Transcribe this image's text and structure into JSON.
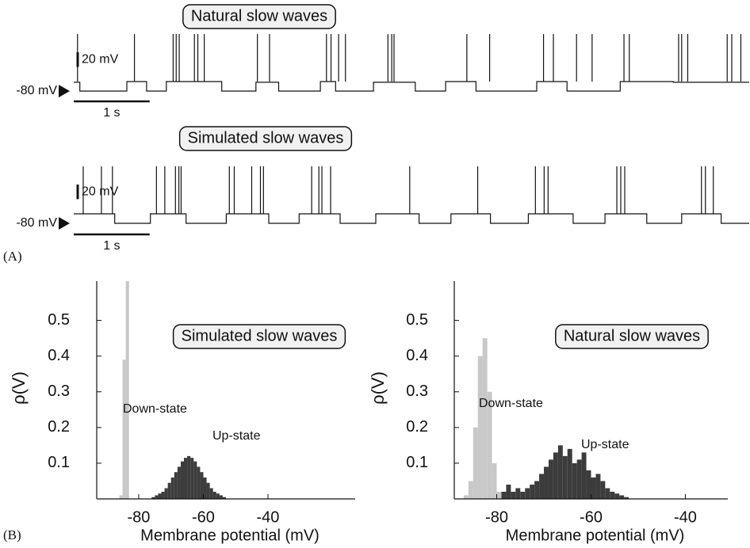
{
  "panel_labels": [
    "(A)",
    "(B)"
  ],
  "chart_data": [
    {
      "type": "trace",
      "title": "Natural slow waves",
      "scale_y": 20,
      "scale_y_label": "20 mV",
      "scale_x": 1,
      "scale_x_label": "1 s",
      "baseline": -80,
      "baseline_label": "-80 mV",
      "xlim": [
        0,
        8.9
      ],
      "ylim": [
        -85,
        0
      ],
      "x": [
        0,
        0.08,
        0.08,
        0.7,
        0.7,
        0.96,
        0.96,
        1.22,
        1.22,
        1.95,
        1.95,
        2.4,
        2.4,
        2.7,
        2.7,
        3.25,
        3.25,
        3.45,
        3.45,
        3.95,
        3.95,
        4.5,
        4.5,
        4.9,
        4.9,
        5.3,
        5.3,
        6.1,
        6.1,
        6.5,
        6.5,
        7.2,
        7.2,
        7.9,
        7.9,
        8.9
      ],
      "values": [
        -68,
        -68,
        -80,
        -80,
        -67,
        -67,
        -80,
        -80,
        -67,
        -67,
        -80,
        -80,
        -68,
        -68,
        -80,
        -80,
        -67,
        -67,
        -80,
        -80,
        -68,
        -68,
        -80,
        -80,
        -67,
        -67,
        -80,
        -80,
        -67,
        -67,
        -80,
        -80,
        -67,
        -67,
        -68,
        -68
      ],
      "spikes": [
        0.05,
        0.8,
        1.31,
        1.35,
        1.39,
        1.59,
        1.635,
        1.72,
        2.42,
        2.58,
        3.33,
        3.39,
        3.49,
        3.58,
        4.14,
        4.19,
        4.22,
        5.18,
        5.48,
        6.19,
        6.32,
        6.625,
        6.83,
        7.25,
        7.32,
        7.97,
        8.01,
        8.09,
        8.61,
        8.67,
        8.79
      ],
      "spike_peak": -2
    },
    {
      "type": "trace",
      "title": "Simulated slow waves",
      "scale_y": 20,
      "scale_y_label": "20 mV",
      "scale_x": 1,
      "scale_x_label": "1 s",
      "baseline": -80,
      "baseline_label": "-80 mV",
      "xlim": [
        0,
        8.9
      ],
      "ylim": [
        -85,
        0
      ],
      "x": [
        0,
        0.54,
        0.54,
        1.01,
        1.01,
        1.48,
        1.48,
        2.01,
        2.01,
        2.57,
        2.57,
        2.97,
        2.97,
        3.51,
        3.51,
        3.98,
        3.98,
        4.55,
        4.55,
        4.97,
        4.97,
        5.49,
        5.49,
        5.99,
        5.99,
        6.58,
        6.58,
        7.0,
        7.0,
        7.55,
        7.55,
        8.01,
        8.01,
        8.53,
        8.53,
        8.9
      ],
      "values": [
        -67,
        -67,
        -80,
        -80,
        -67,
        -67,
        -80,
        -80,
        -67,
        -67,
        -80,
        -80,
        -67,
        -67,
        -80,
        -80,
        -67,
        -67,
        -80,
        -80,
        -67,
        -67,
        -80,
        -80,
        -67,
        -67,
        -80,
        -80,
        -67,
        -67,
        -80,
        -80,
        -67,
        -67,
        -80,
        -80
      ],
      "spikes": [
        0.125,
        0.365,
        0.51,
        1.09,
        1.2,
        1.34,
        1.385,
        1.415,
        2.05,
        2.115,
        2.345,
        2.46,
        2.5,
        3.135,
        3.23,
        3.27,
        3.385,
        4.427,
        5.323,
        6.083,
        6.198,
        6.25,
        7.156,
        7.208,
        7.26,
        8.271,
        8.323,
        8.427
      ],
      "spike_peak": -2
    },
    {
      "type": "histogram",
      "title": "Simulated slow waves",
      "xlabel": "Membrane potential (mV)",
      "ylabel": "ρ(V)",
      "xlim": [
        -93,
        -13
      ],
      "ylim": [
        0,
        0.61
      ],
      "xticks": [
        -80,
        -60,
        -40
      ],
      "yticks": [
        0.1,
        0.2,
        0.3,
        0.4,
        0.5
      ],
      "series": [
        {
          "name": "Down-state",
          "color": "#c8c8c8",
          "bins": [
            -86,
            -85,
            -84,
            -83
          ],
          "values": [
            0.01,
            0.39,
            0.61
          ]
        },
        {
          "name": "Up-state",
          "color": "#3c3c3c",
          "bins": [
            -76,
            -75,
            -74,
            -73,
            -72,
            -71,
            -70,
            -69,
            -68,
            -67,
            -66,
            -65,
            -64,
            -63,
            -62,
            -61,
            -60,
            -59,
            -58,
            -57,
            -56,
            -55,
            -54,
            -53
          ],
          "values": [
            0.005,
            0.01,
            0.015,
            0.02,
            0.03,
            0.045,
            0.06,
            0.075,
            0.09,
            0.105,
            0.115,
            0.12,
            0.115,
            0.105,
            0.09,
            0.075,
            0.06,
            0.045,
            0.03,
            0.02,
            0.015,
            0.01,
            0.005
          ]
        }
      ]
    },
    {
      "type": "histogram",
      "title": "Natural slow waves",
      "xlabel": "Membrane potential (mV)",
      "ylabel": "ρ(V)",
      "xlim": [
        -89,
        -31
      ],
      "ylim": [
        0,
        0.61
      ],
      "xticks": [
        -80,
        -60,
        -40
      ],
      "yticks": [
        0.1,
        0.2,
        0.3,
        0.4,
        0.5
      ],
      "series": [
        {
          "name": "Down-state",
          "color": "#c8c8c8",
          "bins": [
            -87,
            -86,
            -85,
            -84,
            -83,
            -82,
            -81,
            -80,
            -79
          ],
          "values": [
            0.01,
            0.05,
            0.2,
            0.4,
            0.45,
            0.3,
            0.1,
            0.02
          ]
        },
        {
          "name": "Up-state",
          "color": "#3c3c3c",
          "bins": [
            -79,
            -78,
            -77,
            -76,
            -75,
            -74,
            -73,
            -72,
            -71,
            -70,
            -69,
            -68,
            -67,
            -66,
            -65,
            -64,
            -63,
            -62,
            -61,
            -60,
            -59,
            -58,
            -57,
            -56,
            -55,
            -54,
            -53,
            -52
          ],
          "values": [
            0.02,
            0.04,
            0.02,
            0.03,
            0.02,
            0.03,
            0.04,
            0.05,
            0.07,
            0.09,
            0.11,
            0.13,
            0.15,
            0.12,
            0.14,
            0.1,
            0.11,
            0.13,
            0.08,
            0.06,
            0.07,
            0.05,
            0.03,
            0.02,
            0.015,
            0.01,
            0.005
          ]
        }
      ]
    }
  ]
}
